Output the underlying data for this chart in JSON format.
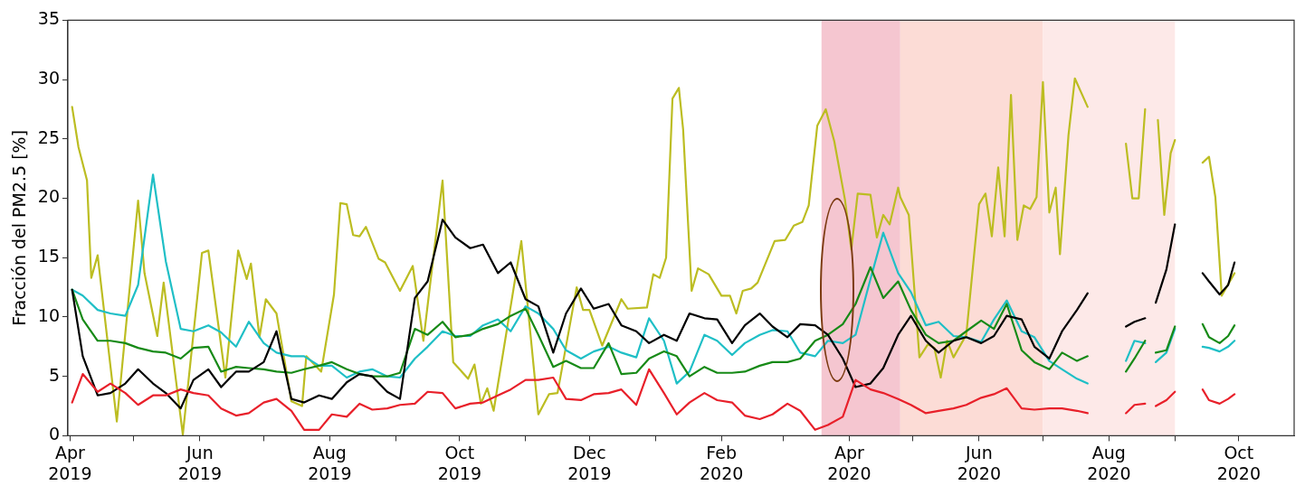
{
  "chart_data": {
    "type": "line",
    "ylabel": "Fracción del PM2.5 [%]",
    "ylim": [
      0,
      35
    ],
    "yticks": [
      0,
      5,
      10,
      15,
      20,
      25,
      30,
      35
    ],
    "xlim": [
      "2019-03-31",
      "2020-10-27"
    ],
    "xticks": [
      {
        "value": "2019-04",
        "label": "Apr 2019"
      },
      {
        "value": "2019-05",
        "label": null
      },
      {
        "value": "2019-06",
        "label": "Jun 2019"
      },
      {
        "value": "2019-07",
        "label": null
      },
      {
        "value": "2019-08",
        "label": "Aug 2019"
      },
      {
        "value": "2019-09",
        "label": null
      },
      {
        "value": "2019-10",
        "label": "Oct 2019"
      },
      {
        "value": "2019-11",
        "label": null
      },
      {
        "value": "2019-12",
        "label": "Dec 2019"
      },
      {
        "value": "2020-01",
        "label": null
      },
      {
        "value": "2020-02",
        "label": "Feb 2020"
      },
      {
        "value": "2020-03",
        "label": null
      },
      {
        "value": "2020-04",
        "label": "Apr 2020"
      },
      {
        "value": "2020-05",
        "label": null
      },
      {
        "value": "2020-06",
        "label": "Jun 2020"
      },
      {
        "value": "2020-07",
        "label": null
      },
      {
        "value": "2020-08",
        "label": "Aug 2020"
      },
      {
        "value": "2020-09",
        "label": null
      },
      {
        "value": "2020-10",
        "label": "Oct 2020"
      }
    ],
    "bands": [
      {
        "axis": "x",
        "from": "2020-03-19",
        "to": "2020-04-25",
        "color": "#f5c6d0"
      },
      {
        "axis": "x",
        "from": "2020-04-25",
        "to": "2020-07-01",
        "color": "#fcdcd6"
      },
      {
        "axis": "x",
        "from": "2020-07-01",
        "to": "2020-09-01",
        "color": "#fde9e8"
      }
    ],
    "marker": "none",
    "line_style": "solid",
    "legend": false,
    "grid": false,
    "x": [
      "2019-04-02",
      "2019-04-07",
      "2019-04-14",
      "2019-04-20",
      "2019-04-27",
      "2019-05-03",
      "2019-05-10",
      "2019-05-16",
      "2019-05-23",
      "2019-05-29",
      "2019-06-05",
      "2019-06-11",
      "2019-06-18",
      "2019-06-24",
      "2019-07-01",
      "2019-07-07",
      "2019-07-14",
      "2019-07-20",
      "2019-07-27",
      "2019-08-02",
      "2019-08-09",
      "2019-08-15",
      "2019-08-21",
      "2019-08-28",
      "2019-09-03",
      "2019-09-10",
      "2019-09-16",
      "2019-09-23",
      "2019-09-29",
      "2019-10-06",
      "2019-10-12",
      "2019-10-19",
      "2019-10-25",
      "2019-11-01",
      "2019-11-07",
      "2019-11-14",
      "2019-11-20",
      "2019-11-27",
      "2019-12-03",
      "2019-12-10",
      "2019-12-16",
      "2019-12-23",
      "2019-12-29",
      "2020-01-05",
      "2020-01-11",
      "2020-01-17",
      "2020-01-24",
      "2020-01-30",
      "2020-02-06",
      "2020-02-12",
      "2020-02-19",
      "2020-02-25",
      "2020-03-03",
      "2020-03-09",
      "2020-03-16",
      "2020-03-22",
      "2020-03-29",
      "2020-04-04",
      "2020-04-11",
      "2020-04-17",
      "2020-04-24",
      "2020-04-30",
      "2020-05-07",
      "2020-05-13",
      "2020-05-20",
      "2020-05-26",
      "2020-06-02",
      "2020-06-08",
      "2020-06-14",
      "2020-06-21",
      "2020-06-27",
      "2020-07-04",
      "2020-07-10",
      "2020-07-17",
      "2020-07-22",
      "2020-07-30",
      "2020-08-09",
      "2020-08-13",
      "2020-08-18",
      "2020-08-21",
      "2020-08-23",
      "2020-08-28",
      "2020-09-01",
      "2020-09-06",
      "2020-09-14",
      "2020-09-17",
      "2020-09-22",
      "2020-09-26",
      "2020-09-29"
    ],
    "series": [
      {
        "color": "#e8202a",
        "values": [
          2.8,
          5.2,
          3.7,
          4.4,
          3.6,
          2.6,
          3.4,
          3.4,
          3.9,
          3.6,
          3.4,
          2.3,
          1.7,
          1.9,
          2.8,
          3.1,
          2.1,
          0.5,
          0.5,
          1.8,
          1.6,
          2.7,
          2.2,
          2.3,
          2.6,
          2.7,
          3.7,
          3.6,
          2.3,
          2.7,
          2.8,
          3.4,
          3.9,
          4.7,
          4.7,
          4.9,
          3.1,
          3.0,
          3.5,
          3.6,
          3.9,
          2.6,
          5.6,
          3.6,
          1.8,
          2.8,
          3.6,
          3.0,
          2.8,
          1.7,
          1.4,
          1.8,
          2.7,
          2.1,
          0.5,
          0.9,
          1.6,
          4.7,
          3.9,
          3.6,
          3.1,
          2.6,
          1.9,
          2.1,
          2.3,
          2.6,
          3.2,
          3.5,
          4.0,
          2.3,
          2.2,
          2.3,
          2.3,
          2.1,
          1.9,
          null,
          1.9,
          2.6,
          2.7,
          null,
          2.5,
          3.0,
          3.7,
          null,
          3.9,
          3.0,
          2.7,
          3.1,
          3.5
        ]
      },
      {
        "color": "#000000",
        "values": [
          12.3,
          6.7,
          3.4,
          3.6,
          4.4,
          5.6,
          4.4,
          3.6,
          2.3,
          4.7,
          5.6,
          4.1,
          5.4,
          5.4,
          6.2,
          8.8,
          3.1,
          2.8,
          3.4,
          3.1,
          4.5,
          5.2,
          5.0,
          3.7,
          3.1,
          11.6,
          13.0,
          18.2,
          16.7,
          15.8,
          16.1,
          13.7,
          14.6,
          11.5,
          10.9,
          7.0,
          10.3,
          12.4,
          10.7,
          11.1,
          9.3,
          8.8,
          7.8,
          8.5,
          8.0,
          10.3,
          9.9,
          9.8,
          7.8,
          9.3,
          10.3,
          9.2,
          8.3,
          9.4,
          9.3,
          8.5,
          6.5,
          4.1,
          4.4,
          5.7,
          8.5,
          10.1,
          8.0,
          7.0,
          8.0,
          8.3,
          7.8,
          8.4,
          10.1,
          9.8,
          7.5,
          6.5,
          8.8,
          10.6,
          12.0,
          null,
          9.2,
          9.6,
          9.9,
          null,
          11.2,
          14.0,
          17.8,
          null,
          13.7,
          13.0,
          11.9,
          12.7,
          14.6
        ]
      },
      {
        "color": "#178a17",
        "values": [
          12.3,
          9.8,
          8.0,
          8.0,
          7.8,
          7.4,
          7.1,
          7.0,
          6.5,
          7.4,
          7.5,
          5.4,
          5.8,
          5.7,
          5.6,
          5.4,
          5.3,
          5.6,
          5.9,
          6.2,
          5.6,
          5.2,
          5.0,
          5.0,
          5.3,
          9.0,
          8.5,
          9.6,
          8.3,
          8.5,
          9.0,
          9.4,
          10.1,
          10.7,
          8.5,
          5.8,
          6.3,
          5.7,
          5.7,
          7.8,
          5.2,
          5.3,
          6.5,
          7.1,
          6.7,
          5.0,
          5.8,
          5.3,
          5.3,
          5.4,
          5.9,
          6.2,
          6.2,
          6.5,
          8.0,
          8.5,
          9.4,
          11.1,
          14.2,
          11.6,
          13.0,
          10.6,
          8.5,
          7.8,
          8.0,
          8.8,
          9.7,
          9.0,
          11.1,
          7.2,
          6.2,
          5.6,
          7.0,
          6.3,
          6.7,
          null,
          5.4,
          6.5,
          8.0,
          null,
          7.0,
          7.2,
          9.2,
          null,
          9.4,
          8.3,
          7.8,
          8.4,
          9.3
        ]
      },
      {
        "color": "#1fbfc6",
        "values": [
          12.3,
          11.8,
          10.6,
          10.3,
          10.1,
          12.7,
          22.0,
          14.7,
          9.0,
          8.8,
          9.3,
          8.7,
          7.5,
          9.6,
          7.8,
          7.0,
          6.7,
          6.7,
          5.9,
          5.9,
          4.9,
          5.4,
          5.6,
          5.0,
          4.9,
          6.5,
          7.5,
          8.8,
          8.4,
          8.4,
          9.3,
          9.8,
          8.8,
          10.9,
          10.3,
          9.0,
          7.2,
          6.5,
          7.1,
          7.5,
          7.0,
          6.6,
          9.9,
          8.0,
          4.4,
          5.4,
          8.5,
          8.0,
          6.8,
          7.8,
          8.5,
          8.9,
          8.8,
          7.0,
          6.7,
          8.0,
          7.8,
          8.5,
          13.2,
          17.1,
          13.7,
          12.1,
          9.3,
          9.6,
          8.4,
          8.3,
          7.9,
          9.8,
          11.4,
          8.8,
          8.3,
          6.3,
          5.6,
          4.8,
          4.4,
          null,
          6.3,
          8.0,
          7.8,
          null,
          6.2,
          7.0,
          9.0,
          null,
          7.5,
          7.4,
          7.1,
          7.5,
          8.0
        ]
      },
      {
        "color": "#bcbd22",
        "x": [
          "2019-04-02",
          "2019-04-05",
          "2019-04-09",
          "2019-04-11",
          "2019-04-14",
          "2019-04-23",
          "2019-05-03",
          "2019-05-06",
          "2019-05-12",
          "2019-05-15",
          "2019-05-24",
          "2019-06-02",
          "2019-06-05",
          "2019-06-13",
          "2019-06-19",
          "2019-06-23",
          "2019-06-25",
          "2019-06-29",
          "2019-07-02",
          "2019-07-07",
          "2019-07-14",
          "2019-07-19",
          "2019-07-21",
          "2019-07-28",
          "2019-08-03",
          "2019-08-06",
          "2019-08-09",
          "2019-08-12",
          "2019-08-15",
          "2019-08-18",
          "2019-08-24",
          "2019-08-27",
          "2019-09-03",
          "2019-09-09",
          "2019-09-14",
          "2019-09-23",
          "2019-09-28",
          "2019-10-05",
          "2019-10-08",
          "2019-10-11",
          "2019-10-14",
          "2019-10-17",
          "2019-10-30",
          "2019-11-07",
          "2019-11-12",
          "2019-11-16",
          "2019-11-25",
          "2019-11-28",
          "2019-12-01",
          "2019-12-07",
          "2019-12-16",
          "2019-12-19",
          "2019-12-28",
          "2019-12-31",
          "2020-01-03",
          "2020-01-06",
          "2020-01-09",
          "2020-01-12",
          "2020-01-14",
          "2020-01-18",
          "2020-01-21",
          "2020-01-26",
          "2020-02-01",
          "2020-02-05",
          "2020-02-08",
          "2020-02-11",
          "2020-02-15",
          "2020-02-18",
          "2020-02-26",
          "2020-03-02",
          "2020-03-06",
          "2020-03-10",
          "2020-03-13",
          "2020-03-17",
          "2020-03-21",
          "2020-03-25",
          "2020-03-30",
          "2020-04-02",
          "2020-04-05",
          "2020-04-11",
          "2020-04-14",
          "2020-04-17",
          "2020-04-20",
          "2020-04-24",
          "2020-04-25",
          "2020-04-29",
          "2020-05-04",
          "2020-05-08",
          "2020-05-11",
          "2020-05-14",
          "2020-05-17",
          "2020-05-20",
          "2020-05-26",
          "2020-06-01",
          "2020-06-04",
          "2020-06-07",
          "2020-06-10",
          "2020-06-13",
          "2020-06-16",
          "2020-06-19",
          "2020-06-22",
          "2020-06-25",
          "2020-06-28",
          "2020-07-01",
          "2020-07-04",
          "2020-07-07",
          "2020-07-09",
          "2020-07-13",
          "2020-07-16",
          "2020-07-22",
          "2020-07-30",
          "2020-08-09",
          "2020-08-12",
          "2020-08-15",
          "2020-08-18",
          "2020-08-21",
          "2020-08-24",
          "2020-08-27",
          "2020-08-30",
          "2020-09-01",
          "2020-09-06",
          "2020-09-14",
          "2020-09-17",
          "2020-09-20",
          "2020-09-23",
          "2020-09-29"
        ],
        "values": [
          27.7,
          24.3,
          21.5,
          13.3,
          15.2,
          1.2,
          19.8,
          13.7,
          8.4,
          12.9,
          0.1,
          15.4,
          15.6,
          4.9,
          15.6,
          13.2,
          14.5,
          8.3,
          11.5,
          10.3,
          2.9,
          2.5,
          6.7,
          5.4,
          11.9,
          19.6,
          19.5,
          16.9,
          16.8,
          17.6,
          14.9,
          14.6,
          12.2,
          14.3,
          8.0,
          21.5,
          6.2,
          4.8,
          6.0,
          2.7,
          4.0,
          2.1,
          16.4,
          1.8,
          3.5,
          3.6,
          12.5,
          10.6,
          10.6,
          7.6,
          11.5,
          10.7,
          10.8,
          13.6,
          13.3,
          15.0,
          28.4,
          29.3,
          25.8,
          12.2,
          14.1,
          13.6,
          11.8,
          11.8,
          10.3,
          12.2,
          12.4,
          12.9,
          16.4,
          16.5,
          17.7,
          18.0,
          19.4,
          26.1,
          27.5,
          24.8,
          19.9,
          15.7,
          20.4,
          20.3,
          16.7,
          18.6,
          17.8,
          20.9,
          20.1,
          18.6,
          6.6,
          7.7,
          7.4,
          4.9,
          8.0,
          6.6,
          8.5,
          19.5,
          20.4,
          16.8,
          22.6,
          16.8,
          28.7,
          16.5,
          19.4,
          19.1,
          20.1,
          29.8,
          18.8,
          20.9,
          15.3,
          25.3,
          30.1,
          27.7,
          null,
          24.6,
          20.0,
          20.0,
          27.5,
          null,
          26.6,
          18.6,
          23.8,
          24.9,
          null,
          23.0,
          23.5,
          20.1,
          11.8,
          13.7
        ]
      }
    ]
  }
}
